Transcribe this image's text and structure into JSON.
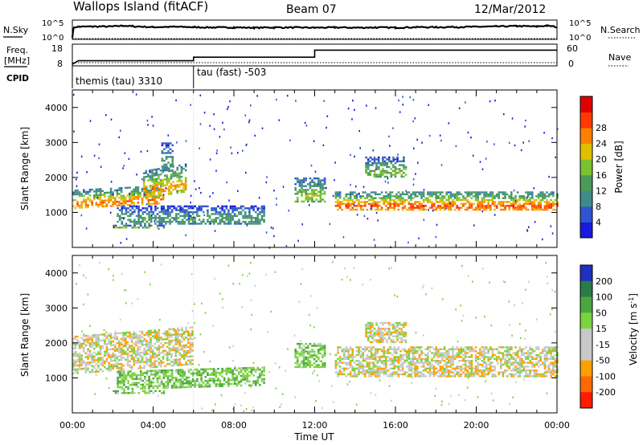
{
  "header": {
    "site": "Wallops Island (fitACF)",
    "beam": "Beam 07",
    "date": "12/Mar/2012"
  },
  "labels": {
    "nsky": "N.Sky",
    "nsearch": "N.Search",
    "freq_line1": "Freq.",
    "freq_line2": "[MHz]",
    "nave": "Nave",
    "cpid": "CPID",
    "range_axis": "Slant Range [km]",
    "time_axis": "Time UT",
    "power_unit": "Power [dB]",
    "velocity_unit": "Velocity [m s",
    "velocity_exp": "-1",
    "noise_top": "10^5",
    "noise_bottom": "10^0",
    "freq_top": "18",
    "freq_bottom": "8",
    "nave_top": "60",
    "nave_bottom": "0"
  },
  "cpid_modes": [
    {
      "name": "themis (tau) 3310",
      "start_hour": 0
    },
    {
      "name": "tau (fast) -503",
      "start_hour": 6
    }
  ],
  "chart_data": [
    {
      "type": "line",
      "panel": "noise",
      "xlabel": "",
      "xlim": [
        0,
        24
      ],
      "ylim": [
        1,
        100000
      ],
      "yscale": "log",
      "series": [
        {
          "name": "N.Sky",
          "x": [
            0,
            0.1,
            0.3,
            1,
            2,
            2.5,
            3,
            4,
            5,
            6,
            7,
            8,
            9,
            10,
            11,
            12,
            13,
            14,
            15,
            16,
            17,
            18,
            19,
            20,
            21,
            22,
            23,
            23.5,
            24
          ],
          "y": [
            1,
            3000,
            4000,
            5000,
            5000,
            9000,
            5500,
            3000,
            4000,
            3000,
            2500,
            2500,
            2000,
            2500,
            2500,
            2000,
            2500,
            2000,
            2500,
            2200,
            3000,
            3000,
            3500,
            4000,
            5000,
            7000,
            5000,
            9000,
            3000
          ]
        }
      ]
    },
    {
      "type": "line",
      "panel": "frequency",
      "xlim": [
        0,
        24
      ],
      "ylim": [
        8,
        18
      ],
      "series": [
        {
          "name": "Freq.",
          "x": [
            0,
            0.3,
            6,
            6,
            12,
            12,
            24
          ],
          "y": [
            8,
            10,
            10,
            12,
            12,
            16,
            16
          ]
        }
      ]
    },
    {
      "type": "heatmap",
      "panel": "power",
      "xlabel": "",
      "ylabel": "Slant Range [km]",
      "xlim": [
        0,
        24
      ],
      "ylim": [
        0,
        4500
      ],
      "x_ticks": [
        "00:00",
        "04:00",
        "08:00",
        "12:00",
        "16:00",
        "20:00",
        "00:00"
      ],
      "y_ticks": [
        1000,
        2000,
        3000,
        4000
      ],
      "colorbar": {
        "label": "Power [dB]",
        "ticks": [
          4,
          8,
          12,
          16,
          20,
          24,
          28
        ]
      },
      "echo_bands": [
        {
          "start": 0,
          "end": 4.5,
          "range_start": 1100,
          "range_end": 1650,
          "peak_db": 28
        },
        {
          "start": 3.5,
          "end": 5.6,
          "range_start": 1400,
          "range_end": 2200,
          "peak_db": 26
        },
        {
          "start": 4.4,
          "end": 5.0,
          "range_start": 2200,
          "range_end": 3000,
          "peak_db": 14
        },
        {
          "start": 2.2,
          "end": 9.5,
          "range_start": 700,
          "range_end": 1200,
          "peak_db": 14
        },
        {
          "start": 2.0,
          "end": 4.5,
          "range_start": 550,
          "range_end": 650,
          "peak_db": 22
        },
        {
          "start": 11.0,
          "end": 12.5,
          "range_start": 1300,
          "range_end": 2000,
          "peak_db": 20
        },
        {
          "start": 13.0,
          "end": 24,
          "range_start": 1050,
          "range_end": 1600,
          "peak_db": 30
        },
        {
          "start": 14.5,
          "end": 16.5,
          "range_start": 2000,
          "range_end": 2600,
          "peak_db": 18
        }
      ]
    },
    {
      "type": "heatmap",
      "panel": "velocity",
      "xlabel": "Time UT",
      "ylabel": "Slant Range [km]",
      "xlim": [
        0,
        24
      ],
      "ylim": [
        0,
        4500
      ],
      "x_ticks": [
        "00:00",
        "04:00",
        "08:00",
        "12:00",
        "16:00",
        "20:00",
        "00:00"
      ],
      "y_ticks": [
        1000,
        2000,
        3000,
        4000
      ],
      "colorbar": {
        "label": "Velocity [m s-1]",
        "ticks": [
          200,
          100,
          50,
          15,
          -15,
          -50,
          -100,
          -200
        ]
      },
      "echo_bands": [
        {
          "start": 0,
          "end": 6,
          "range_start": 1100,
          "range_end": 2200,
          "velocity": 0
        },
        {
          "start": 2.2,
          "end": 9.5,
          "range_start": 700,
          "range_end": 1200,
          "velocity": 40
        },
        {
          "start": 2.0,
          "end": 4.5,
          "range_start": 550,
          "range_end": 650,
          "velocity": 40
        },
        {
          "start": 11.0,
          "end": 12.5,
          "range_start": 1300,
          "range_end": 2000,
          "velocity": 40
        },
        {
          "start": 13.0,
          "end": 24,
          "range_start": 1050,
          "range_end": 1900,
          "velocity": 0
        },
        {
          "start": 14.5,
          "end": 16.5,
          "range_start": 2000,
          "range_end": 2600,
          "velocity": 0
        }
      ]
    }
  ],
  "colors": {
    "power_scale": [
      "#1a1adc",
      "#2f55d0",
      "#3f8a8a",
      "#4a9a5a",
      "#7ac22f",
      "#e0c000",
      "#ff8000",
      "#ff3a00",
      "#e00000"
    ],
    "velocity_scale": [
      "#2030c0",
      "#2a7a4a",
      "#4ca640",
      "#7ad340",
      "#c8c8c8",
      "#c8c8c8",
      "#ffa000",
      "#ff6a00",
      "#ff1a00"
    ]
  }
}
